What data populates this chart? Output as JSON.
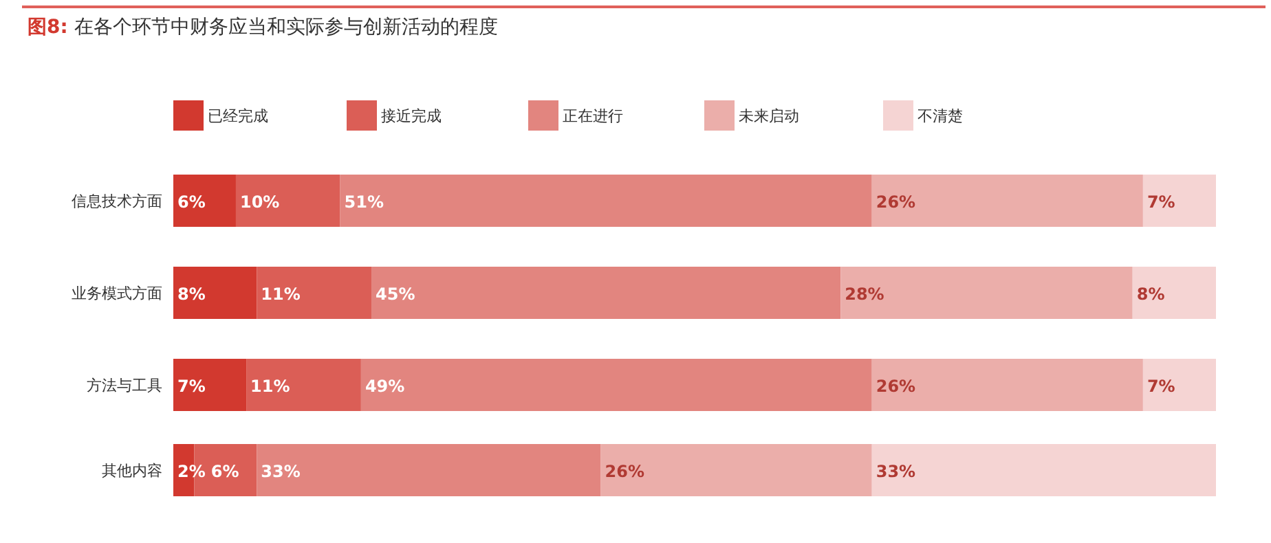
{
  "chart_data": {
    "type": "bar",
    "orientation": "horizontal",
    "stacked": true,
    "title": "**图8:** 在各个环节中财务应当和实际参与创新活动的程度",
    "categories": [
      "信息技术方面",
      "业务模式方面",
      "方法与工具",
      "其他内容"
    ],
    "xlim": [
      0,
      100
    ],
    "legend": "top",
    "tick_labels": "y",
    "series": [
      {
        "name": "已经完成",
        "color": "#d2392f",
        "values": [
          6,
          8,
          7,
          2
        ],
        "value_labels": [
          "6%",
          "8%",
          "7%",
          "2%"
        ]
      },
      {
        "name": "接近完成",
        "color": "#db5e56",
        "values": [
          10,
          11,
          11,
          6
        ],
        "value_labels": [
          "10%",
          "11%",
          "11%",
          "6%"
        ]
      },
      {
        "name": "正在进行",
        "color": "#e2857f",
        "values": [
          51,
          45,
          49,
          33
        ],
        "value_labels": [
          "51%",
          "45%",
          "49%",
          "33%"
        ]
      },
      {
        "name": "未来启动",
        "color": "#ebaeaa",
        "values": [
          26,
          28,
          26,
          26
        ],
        "value_labels": [
          "26%",
          "28%",
          "26%",
          "26%"
        ]
      },
      {
        "name": "不清楚",
        "color": "#f5d4d3",
        "values": [
          7,
          8,
          7,
          33
        ],
        "value_labels": [
          "7%",
          "8%",
          "7%",
          "33%"
        ]
      }
    ]
  }
}
